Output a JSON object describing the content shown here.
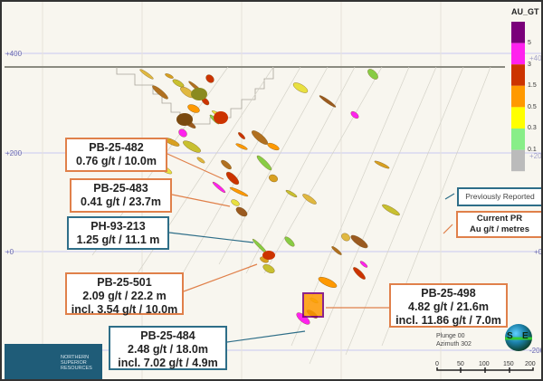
{
  "elevations": {
    "e400": "+400",
    "e200": "+200",
    "e0": "+0",
    "em200": "-200"
  },
  "legend": {
    "title": "AU_GT",
    "colors": [
      "#7a007a",
      "#ff22ee",
      "#cc3300",
      "#ff9900",
      "#ffff00",
      "#88ee88",
      "#bbbbbb"
    ],
    "labels": [
      "5",
      "3",
      "1.5",
      "0.5",
      "0.3",
      "0.1"
    ]
  },
  "callouts": [
    {
      "hole": "PB-25-482",
      "line1": "0.76 g/t / 10.0m",
      "type": "current"
    },
    {
      "hole": "PB-25-483",
      "line1": "0.41 g/t / 23.7m",
      "type": "current"
    },
    {
      "hole": "PH-93-213",
      "line1": "1.25 g/t / 11.1 m",
      "type": "previous"
    },
    {
      "hole": "PB-25-501",
      "line1": "2.09 g/t / 22.2 m",
      "line2": "incl. 3.54 g/t / 10.0m",
      "type": "current"
    },
    {
      "hole": "PB-25-484",
      "line1": "2.48 g/t  / 18.0m",
      "line2": "incl. 7.02 g/t / 4.9m",
      "type": "previous"
    },
    {
      "hole": "PB-25-498",
      "line1": "4.82 g/t / 21.6m",
      "line2": "incl. 11.86 g/t / 7.0m",
      "type": "current"
    }
  ],
  "key": {
    "previous": "Previously Reported",
    "current_1": "Current PR",
    "current_2": "Au g/t / metres"
  },
  "colors": {
    "current": "#e0804a",
    "previous": "#2e6e88"
  },
  "view": {
    "plunge": "Plunge 00",
    "azimuth": "Azimuth 302"
  },
  "compass": {
    "left": "S",
    "right": "E"
  },
  "scale": [
    "0",
    "50",
    "100",
    "150",
    "200"
  ],
  "logo": {
    "text": "NORTHERN SUPERIOR RESOURCES"
  }
}
